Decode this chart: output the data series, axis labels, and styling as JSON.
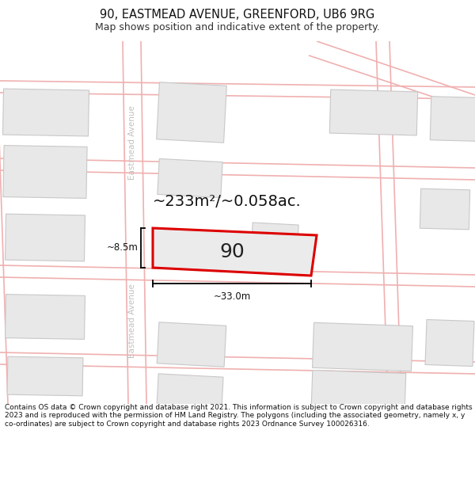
{
  "title": "90, EASTMEAD AVENUE, GREENFORD, UB6 9RG",
  "subtitle": "Map shows position and indicative extent of the property.",
  "footer": "Contains OS data © Crown copyright and database right 2021. This information is subject to Crown copyright and database rights 2023 and is reproduced with the permission of HM Land Registry. The polygons (including the associated geometry, namely x, y co-ordinates) are subject to Crown copyright and database rights 2023 Ordnance Survey 100026316.",
  "area_label": "~233m²/~0.058ac.",
  "width_label": "~33.0m",
  "height_label": "~8.5m",
  "house_number": "90",
  "bg_color": "#ffffff",
  "road_color": "#f0b0b0",
  "building_color": "#e8e8e8",
  "building_edge": "#c8c8c8",
  "highlight_color": "#dd0000",
  "street_label_color": "#c0c0c0",
  "title_fontsize": 10.5,
  "subtitle_fontsize": 9,
  "footer_fontsize": 6.5,
  "area_fontsize": 14,
  "number_fontsize": 18,
  "dim_fontsize": 8.5,
  "street_fontsize": 7.5
}
